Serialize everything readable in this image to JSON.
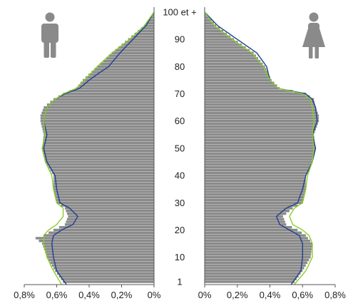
{
  "chart_data": {
    "type": "bar",
    "title": "",
    "xlabel": "",
    "ylabel": "",
    "y_axis_labels": [
      "1",
      "10",
      "20",
      "30",
      "40",
      "50",
      "60",
      "70",
      "80",
      "90",
      "100 et +"
    ],
    "x_axis_left_labels": [
      "0,8%",
      "0,6%",
      "0,4%",
      "0,2%",
      "0%"
    ],
    "x_axis_right_labels": [
      "0%",
      "0,2%",
      "0,4%",
      "0,6%",
      "0,8%"
    ],
    "xlim": [
      0,
      0.8
    ],
    "ylim": [
      0,
      100
    ],
    "grid": false,
    "legend": "none",
    "colors": {
      "bars": "#8a8a8a",
      "blue_line": "#1f3f8f",
      "green_line": "#8ccc2c",
      "icons": "#8a8a8a"
    },
    "icons": [
      "man-icon",
      "woman-icon"
    ],
    "series": [
      {
        "side": "left",
        "color": "#8a8a8a",
        "ages": [
          0,
          5,
          10,
          15,
          17,
          18,
          20,
          22,
          25,
          28,
          30,
          35,
          40,
          45,
          50,
          55,
          60,
          62,
          65,
          68,
          70,
          72,
          75,
          80,
          85,
          90,
          95,
          100
        ],
        "values": [
          0.55,
          0.61,
          0.66,
          0.69,
          0.73,
          0.68,
          0.62,
          0.55,
          0.53,
          0.55,
          0.6,
          0.62,
          0.62,
          0.67,
          0.69,
          0.68,
          0.7,
          0.7,
          0.68,
          0.62,
          0.56,
          0.48,
          0.44,
          0.35,
          0.26,
          0.16,
          0.06,
          0.0
        ]
      },
      {
        "side": "left",
        "color": "#1f3f8f",
        "ages": [
          0,
          5,
          10,
          15,
          18,
          20,
          22,
          25,
          28,
          30,
          35,
          40,
          45,
          50,
          55,
          60,
          65,
          68,
          70,
          72,
          75,
          78,
          80,
          85,
          90,
          95,
          100
        ],
        "values": [
          0.54,
          0.6,
          0.62,
          0.63,
          0.62,
          0.57,
          0.5,
          0.47,
          0.52,
          0.58,
          0.6,
          0.61,
          0.66,
          0.68,
          0.66,
          0.68,
          0.66,
          0.61,
          0.55,
          0.46,
          0.4,
          0.33,
          0.28,
          0.21,
          0.13,
          0.05,
          0.0
        ]
      },
      {
        "side": "left",
        "color": "#8ccc2c",
        "ages": [
          0,
          5,
          10,
          15,
          18,
          20,
          22,
          25,
          28,
          30,
          35,
          40,
          45,
          50,
          55,
          60,
          65,
          68,
          70,
          72,
          75,
          80,
          85,
          90,
          95,
          100
        ],
        "values": [
          0.57,
          0.62,
          0.66,
          0.68,
          0.68,
          0.65,
          0.6,
          0.56,
          0.56,
          0.6,
          0.62,
          0.63,
          0.67,
          0.69,
          0.67,
          0.68,
          0.66,
          0.61,
          0.56,
          0.48,
          0.43,
          0.35,
          0.26,
          0.15,
          0.06,
          0.0
        ]
      },
      {
        "side": "right",
        "color": "#8a8a8a",
        "ages": [
          0,
          5,
          10,
          15,
          18,
          20,
          22,
          25,
          28,
          30,
          35,
          40,
          45,
          50,
          55,
          60,
          62,
          65,
          68,
          70,
          72,
          75,
          80,
          85,
          90,
          95,
          100
        ],
        "values": [
          0.54,
          0.6,
          0.65,
          0.66,
          0.62,
          0.57,
          0.5,
          0.48,
          0.54,
          0.6,
          0.62,
          0.62,
          0.66,
          0.68,
          0.67,
          0.7,
          0.7,
          0.68,
          0.67,
          0.62,
          0.46,
          0.41,
          0.37,
          0.3,
          0.18,
          0.07,
          0.0
        ]
      },
      {
        "side": "right",
        "color": "#1f3f8f",
        "ages": [
          0,
          5,
          10,
          15,
          18,
          20,
          22,
          25,
          28,
          30,
          35,
          40,
          45,
          50,
          55,
          60,
          65,
          68,
          70,
          72,
          75,
          80,
          85,
          90,
          95,
          100
        ],
        "values": [
          0.53,
          0.59,
          0.6,
          0.6,
          0.58,
          0.52,
          0.46,
          0.44,
          0.5,
          0.57,
          0.6,
          0.62,
          0.66,
          0.68,
          0.66,
          0.69,
          0.68,
          0.66,
          0.62,
          0.45,
          0.4,
          0.38,
          0.32,
          0.2,
          0.08,
          0.0
        ]
      },
      {
        "side": "right",
        "color": "#8ccc2c",
        "ages": [
          0,
          5,
          10,
          15,
          18,
          20,
          22,
          25,
          28,
          30,
          35,
          40,
          45,
          50,
          55,
          60,
          65,
          68,
          70,
          72,
          75,
          80,
          85,
          90,
          95,
          100
        ],
        "values": [
          0.55,
          0.62,
          0.66,
          0.66,
          0.64,
          0.6,
          0.54,
          0.52,
          0.55,
          0.6,
          0.62,
          0.63,
          0.66,
          0.67,
          0.66,
          0.67,
          0.66,
          0.65,
          0.6,
          0.45,
          0.4,
          0.36,
          0.29,
          0.17,
          0.06,
          0.0
        ]
      }
    ]
  }
}
